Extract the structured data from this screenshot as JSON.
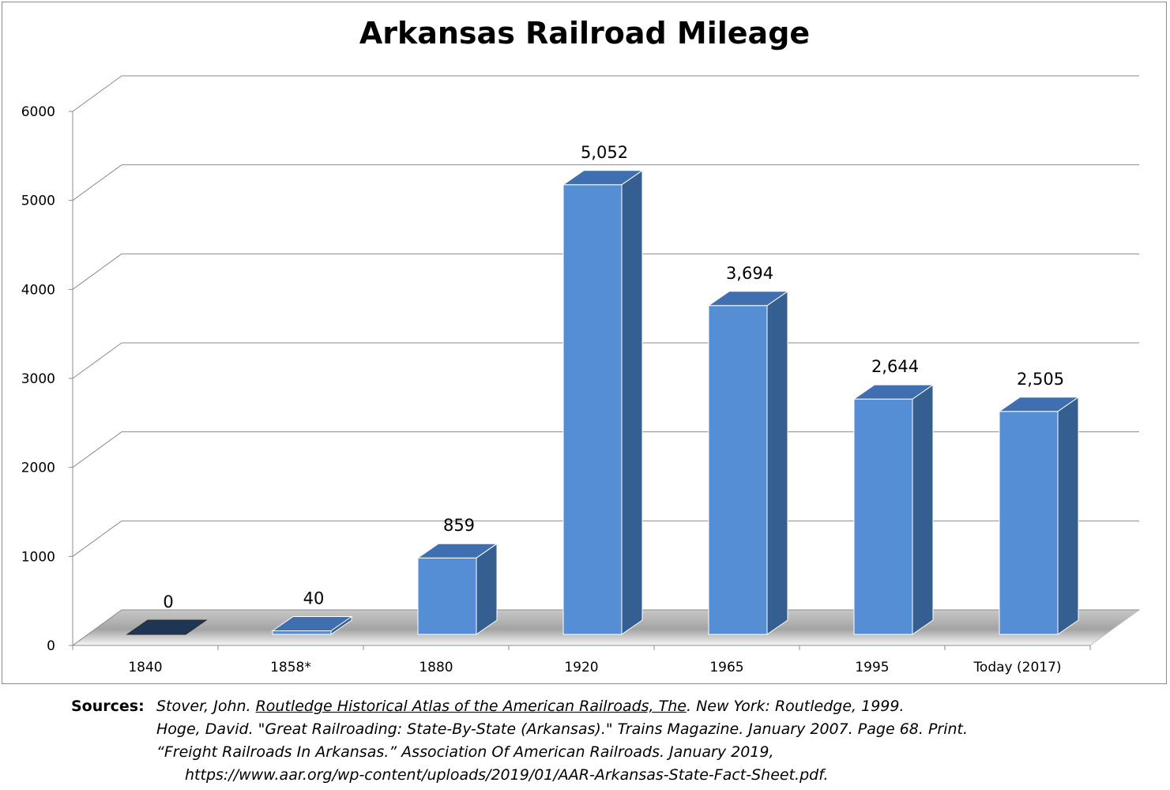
{
  "chart_data": {
    "type": "bar",
    "style": "3d-column",
    "title": "Arkansas Railroad Mileage",
    "categories": [
      "1840",
      "1858*",
      "1880",
      "1920",
      "1965",
      "1995",
      "Today  (2017)"
    ],
    "values": [
      0,
      40,
      859,
      5052,
      3694,
      2644,
      2505
    ],
    "data_labels": [
      "0",
      "40",
      "859",
      "5,052",
      "3,694",
      "2,644",
      "2,505"
    ],
    "yticks": [
      "0",
      "1000",
      "2000",
      "3000",
      "4000",
      "5000",
      "6000"
    ],
    "ylim": [
      0,
      6000
    ],
    "grid": true,
    "colors": {
      "bar_front": "#558ed5",
      "bar_side": "#365f91",
      "bar_top": "#3f6fb0",
      "bar_zero": "#1f3556",
      "grid": "#8c8c8c"
    }
  },
  "sources": {
    "label": "Sources:",
    "entries": [
      {
        "pre": "Stover, John. ",
        "title": "Routledge Historical Atlas of the American Railroads, The",
        "post": ". New York: Routledge, 1999."
      },
      {
        "pre": "Hoge, David. \"Great Railroading: State-By-State (Arkansas).\" Trains Magazine. January 2007. Page 68. Print.",
        "title": "",
        "post": ""
      },
      {
        "pre": "“Freight Railroads In Arkansas.” Association Of American Railroads. January 2019,",
        "title": "",
        "post": ""
      },
      {
        "pre": "https://www.aar.org/wp-content/uploads/2019/01/AAR-Arkansas-State-Fact-Sheet.pdf.",
        "title": "",
        "post": ""
      }
    ]
  }
}
